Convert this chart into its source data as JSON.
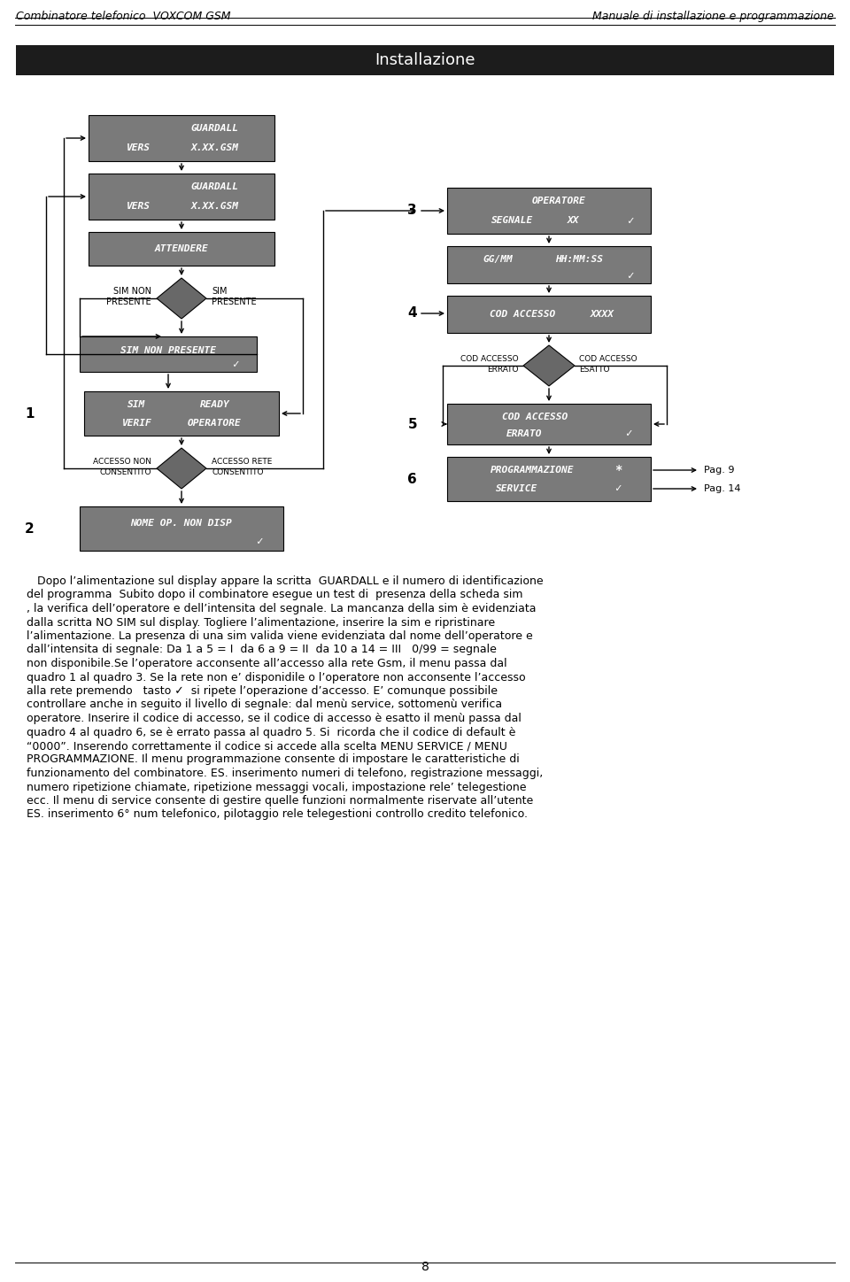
{
  "page_bg": "#ffffff",
  "header_left": "Combinatore telefonico  VOXCOM GSM",
  "header_right": "Manuale di installazione e programmazione",
  "header_font_size": 9,
  "section_title": "Installazione",
  "section_bg": "#1c1c1c",
  "section_fg": "#ffffff",
  "section_font_size": 13,
  "box_bg": "#7a7a7a",
  "box_fg": "#ffffff",
  "diamond_bg": "#686868",
  "footer_text": "8",
  "body_text": [
    "   Dopo l’alimentazione sul display appare la scritta  GUARDALL e il numero di identificazione",
    "del programma  Subito dopo il combinatore esegue un test di  presenza della scheda sim",
    ", la verifica dell’operatore e dell’intensita del segnale. La mancanza della sim è evidenziata",
    "dalla scritta NO SIM sul display. Togliere l’alimentazione, inserire la sim e ripristinare",
    "l’alimentazione. La presenza di una sim valida viene evidenziata dal nome dell’operatore e",
    "dall’intensita di segnale: Da 1 a 5 = I  da 6 a 9 = II  da 10 a 14 = III   0/99 = segnale",
    "non disponibile.Se l’operatore acconsente all’accesso alla rete Gsm, il menu passa dal",
    "quadro 1 al quadro 3. Se la rete non e’ disponidile o l’operatore non acconsente l’accesso",
    "alla rete premendo   tasto ✓  si ripete l’operazione d’accesso. E’ comunque possibile",
    "controllare anche in seguito il livello di segnale: dal menù service, sottomenù verifica",
    "operatore. Inserire il codice di accesso, se il codice di accesso è esatto il menù passa dal",
    "quadro 4 al quadro 6, se è errato passa al quadro 5. Si  ricorda che il codice di default è",
    "“0000”. Inserendo correttamente il codice si accede alla scelta MENU SERVICE / MENU",
    "PROGRAMMAZIONE. Il menu programmazione consente di impostare le caratteristiche di",
    "funzionamento del combinatore. ES. inserimento numeri di telefono, registrazione messaggi,",
    "numero ripetizione chiamate, ripetizione messaggi vocali, impostazione rele’ telegestione",
    "ecc. Il menu di service consente di gestire quelle funzioni normalmente riservate all’utente",
    "ES. inserimento 6° num telefonico, pilotaggio rele telegestioni controllo credito telefonico."
  ]
}
